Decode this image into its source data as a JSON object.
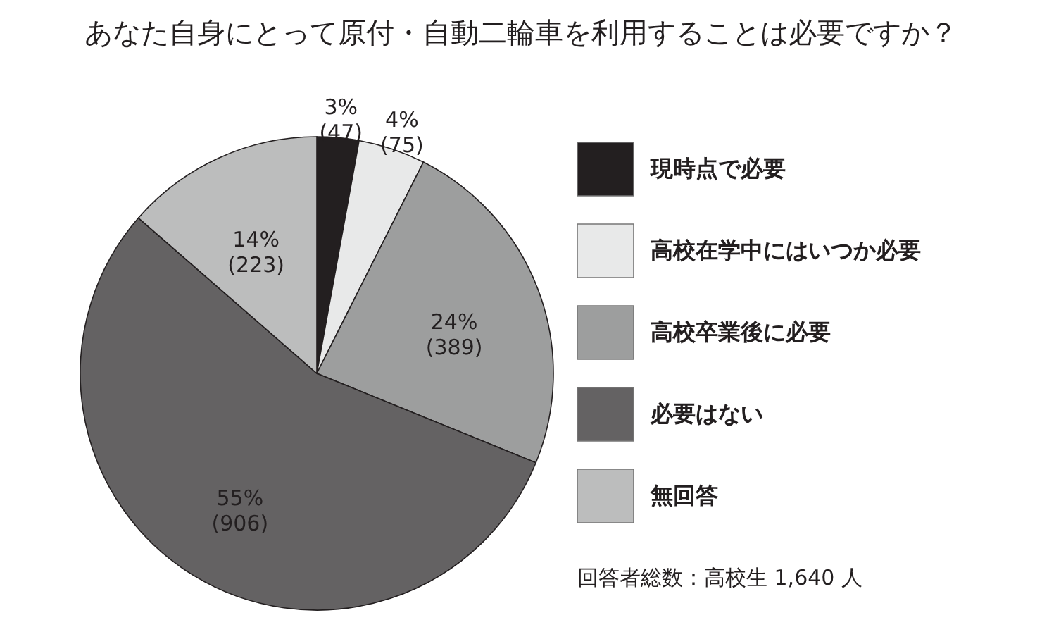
{
  "chart_data": {
    "type": "pie",
    "title": "あなた自身にとって原付・自動二輪車を利用することは必要ですか？",
    "categories": [
      "現時点で必要",
      "高校在学中にはいつか必要",
      "高校卒業後に必要",
      "必要はない",
      "無回答"
    ],
    "values": [
      47,
      75,
      389,
      906,
      223
    ],
    "value_labels": [
      "3%\n(47)",
      "4%\n(75)",
      "24%\n(389)",
      "55%\n(906)",
      "14%\n(223)"
    ],
    "colors": [
      "#231f20",
      "#e8e9e9",
      "#9d9e9e",
      "#646263",
      "#bcbdbd"
    ],
    "legend": "right",
    "annotations": [
      "回答者総数：高校生 1,640 人"
    ]
  }
}
